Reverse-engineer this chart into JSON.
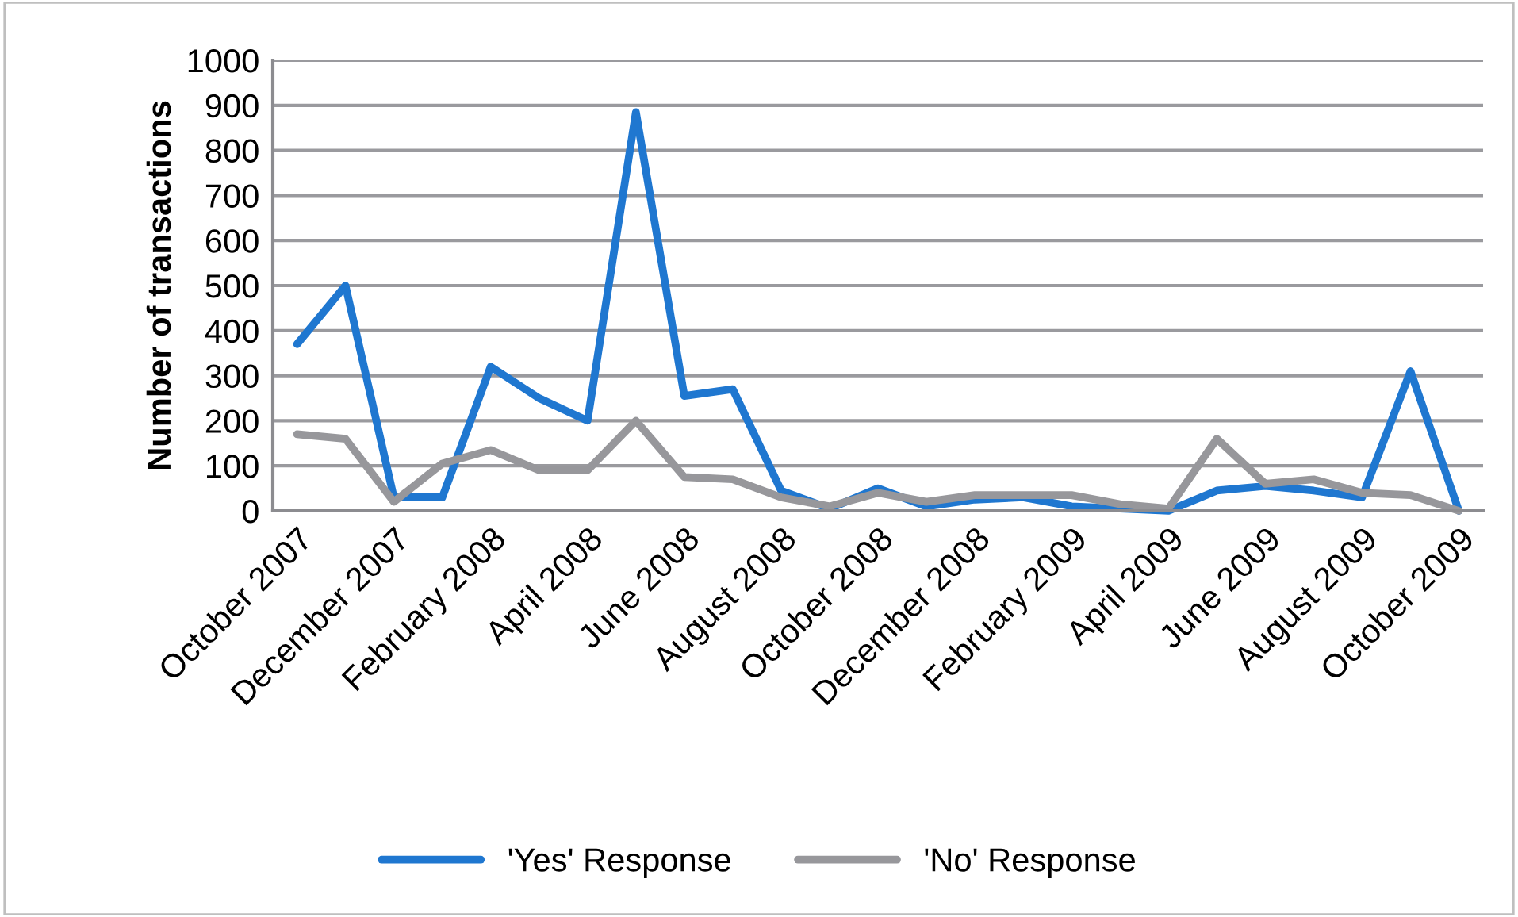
{
  "chart_data": {
    "type": "line",
    "ylabel": "Number of transactions",
    "categories": [
      "October 2007",
      null,
      "December 2007",
      null,
      "February 2008",
      null,
      "April 2008",
      null,
      "June 2008",
      null,
      "August 2008",
      null,
      "October 2008",
      null,
      "December 2008",
      null,
      "February 2009",
      null,
      "April 2009",
      null,
      "June 2009",
      null,
      "August 2009",
      null,
      "October 2009"
    ],
    "series": [
      {
        "name": "'Yes' Response",
        "color": "#1f77d0",
        "values": [
          370,
          500,
          30,
          30,
          320,
          250,
          200,
          885,
          255,
          270,
          45,
          5,
          50,
          10,
          25,
          30,
          10,
          5,
          0,
          45,
          55,
          45,
          30,
          310,
          0
        ]
      },
      {
        "name": "'No' Response",
        "color": "#97979b",
        "values": [
          170,
          160,
          20,
          105,
          135,
          90,
          90,
          200,
          75,
          70,
          30,
          10,
          40,
          20,
          35,
          35,
          35,
          15,
          5,
          160,
          60,
          70,
          40,
          35,
          0
        ]
      }
    ],
    "ylim": [
      0,
      1000
    ],
    "yticks": [
      0,
      100,
      200,
      300,
      400,
      500,
      600,
      700,
      800,
      900,
      1000
    ],
    "grid": "y",
    "legend": "bottom",
    "marker": "none",
    "line_style": "solid"
  }
}
